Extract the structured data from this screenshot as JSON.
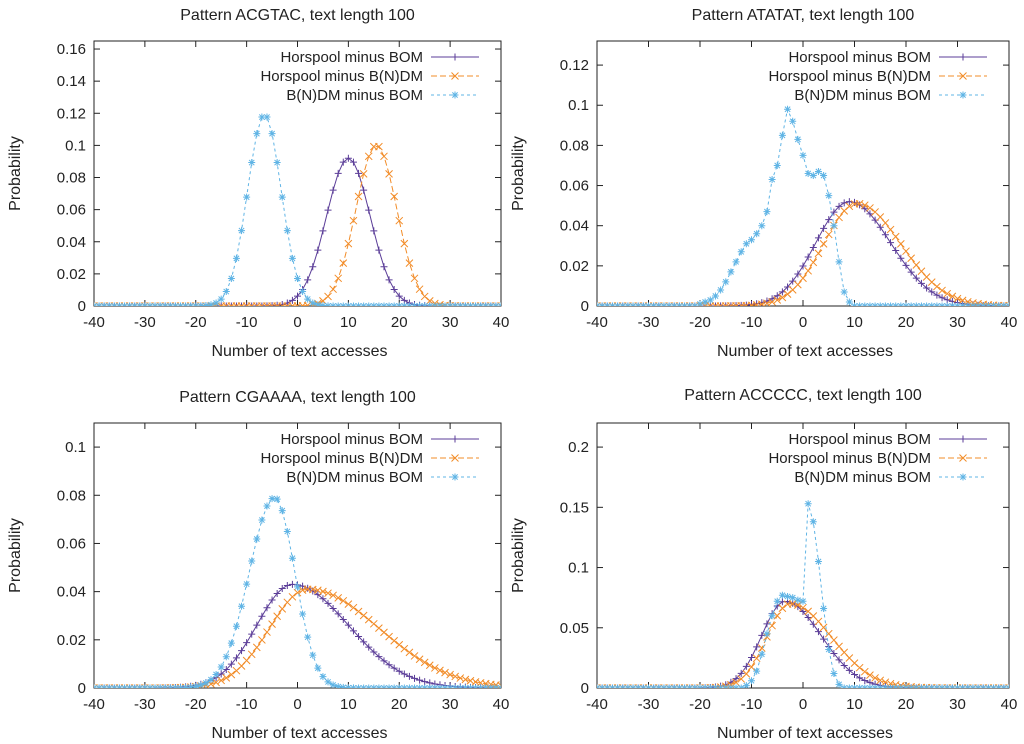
{
  "colors": {
    "horspool_bom": "#5b3d98",
    "horspool_bndm": "#f28c28",
    "bndm_bom": "#5fb4e5",
    "axis": "#222222"
  },
  "chart_data": [
    {
      "type": "line",
      "title": "Pattern ACGTAC, text length 100",
      "xlabel": "Number of text accesses",
      "ylabel": "Probability",
      "xlim": [
        -40,
        40
      ],
      "ylim": [
        0,
        0.165
      ],
      "xticks": [
        -40,
        -30,
        -20,
        -10,
        0,
        10,
        20,
        30,
        40
      ],
      "xtick_labels": [
        "-40",
        "-30",
        "-20",
        "-10",
        "0",
        "10",
        "20",
        "30",
        "40"
      ],
      "yticks": [
        0,
        0.02,
        0.04,
        0.06,
        0.08,
        0.1,
        0.12,
        0.14,
        0.16
      ],
      "ytick_labels": [
        "0",
        "0.02",
        "0.04",
        "0.06",
        "0.08",
        "0.1",
        "0.12",
        "0.14",
        "0.16"
      ],
      "legend": [
        "Horspool minus BOM",
        "Horspool minus B(N)DM",
        "B(N)DM minus BOM"
      ],
      "legend_position": "top-right",
      "series": [
        {
          "name": "Horspool minus BOM",
          "model": {
            "mu": 10,
            "sl": 4.3,
            "sr": 4.3,
            "peak": 0.092
          }
        },
        {
          "name": "Horspool minus B(N)DM",
          "model": {
            "mu": 15.5,
            "sl": 4.0,
            "sr": 4.0,
            "peak": 0.1
          }
        },
        {
          "name": "B(N)DM minus BOM",
          "model": {
            "mu": -6.5,
            "sl": 3.3,
            "sr": 3.3,
            "peak": 0.119
          }
        }
      ]
    },
    {
      "type": "line",
      "title": "Pattern ATATAT, text length 100",
      "xlabel": "Number of text accesses",
      "ylabel": "Probability",
      "xlim": [
        -40,
        40
      ],
      "ylim": [
        0,
        0.132
      ],
      "xticks": [
        -40,
        -30,
        -20,
        -10,
        0,
        10,
        20,
        30,
        40
      ],
      "xtick_labels": [
        "-40",
        "-30",
        "-20",
        "-10",
        "0",
        "10",
        "20",
        "30",
        "40"
      ],
      "yticks": [
        0,
        0.02,
        0.04,
        0.06,
        0.08,
        0.1,
        0.12
      ],
      "ytick_labels": [
        "0",
        "0.02",
        "0.04",
        "0.06",
        "0.08",
        "0.1",
        "0.12"
      ],
      "legend": [
        "Horspool minus BOM",
        "Horspool minus B(N)DM",
        "B(N)DM minus BOM"
      ],
      "legend_position": "top-right",
      "series": [
        {
          "name": "Horspool minus BOM",
          "model": {
            "mu": 9,
            "sl": 6.5,
            "sr": 8.0,
            "peak": 0.052
          }
        },
        {
          "name": "Horspool minus B(N)DM",
          "model": {
            "mu": 10.5,
            "sl": 6.5,
            "sr": 8.5,
            "peak": 0.051
          }
        },
        {
          "name": "B(N)DM minus BOM",
          "values": [
            [
              -22,
              0
            ],
            [
              -21,
              0
            ],
            [
              -20,
              0.001
            ],
            [
              -19,
              0.002
            ],
            [
              -18,
              0.003
            ],
            [
              -17,
              0.005
            ],
            [
              -16,
              0.008
            ],
            [
              -15,
              0.012
            ],
            [
              -14,
              0.017
            ],
            [
              -13,
              0.022
            ],
            [
              -12,
              0.027
            ],
            [
              -11,
              0.031
            ],
            [
              -10,
              0.033
            ],
            [
              -9,
              0.036
            ],
            [
              -8,
              0.04
            ],
            [
              -7,
              0.047
            ],
            [
              -6,
              0.063
            ],
            [
              -5,
              0.07
            ],
            [
              -4,
              0.085
            ],
            [
              -3,
              0.098
            ],
            [
              -2,
              0.092
            ],
            [
              -1,
              0.083
            ],
            [
              0,
              0.075
            ],
            [
              1,
              0.066
            ],
            [
              2,
              0.065
            ],
            [
              3,
              0.067
            ],
            [
              4,
              0.065
            ],
            [
              5,
              0.055
            ],
            [
              6,
              0.04
            ],
            [
              7,
              0.022
            ],
            [
              8,
              0.007
            ],
            [
              9,
              0.002
            ],
            [
              10,
              0
            ],
            [
              11,
              0
            ]
          ]
        }
      ]
    },
    {
      "type": "line",
      "title": "Pattern CGAAAA, text length 100",
      "xlabel": "Number of text accesses",
      "ylabel": "Probability",
      "xlim": [
        -40,
        40
      ],
      "ylim": [
        0,
        0.11
      ],
      "xticks": [
        -40,
        -30,
        -20,
        -10,
        0,
        10,
        20,
        30,
        40
      ],
      "xtick_labels": [
        "-40",
        "-30",
        "-20",
        "-10",
        "0",
        "10",
        "20",
        "30",
        "40"
      ],
      "yticks": [
        0,
        0.02,
        0.04,
        0.06,
        0.08,
        0.1
      ],
      "ytick_labels": [
        "0",
        "0.02",
        "0.04",
        "0.06",
        "0.08",
        "0.1"
      ],
      "legend": [
        "Horspool minus BOM",
        "Horspool minus B(N)DM",
        "B(N)DM minus BOM"
      ],
      "legend_position": "top-right",
      "series": [
        {
          "name": "Horspool minus BOM",
          "model": {
            "mu": -1,
            "sl": 7.0,
            "sr": 11.0,
            "peak": 0.043
          }
        },
        {
          "name": "Horspool minus B(N)DM",
          "model": {
            "mu": 2,
            "sl": 7.5,
            "sr": 14.0,
            "peak": 0.041
          }
        },
        {
          "name": "B(N)DM minus BOM",
          "model": {
            "mu": -4.5,
            "sl": 5.0,
            "sr": 4.0,
            "peak": 0.079
          }
        }
      ]
    },
    {
      "type": "line",
      "title": "Pattern ACCCCC, text length 100",
      "xlabel": "Number of text accesses",
      "ylabel": "Probability",
      "xlim": [
        -40,
        40
      ],
      "ylim": [
        0,
        0.22
      ],
      "xticks": [
        -40,
        -30,
        -20,
        -10,
        0,
        10,
        20,
        30,
        40
      ],
      "xtick_labels": [
        "-40",
        "-30",
        "-20",
        "-10",
        "0",
        "10",
        "20",
        "30",
        "40"
      ],
      "yticks": [
        0,
        0.05,
        0.1,
        0.15,
        0.2
      ],
      "ytick_labels": [
        "0",
        "0.05",
        "0.1",
        "0.15",
        "0.2"
      ],
      "legend": [
        "Horspool minus BOM",
        "Horspool minus B(N)DM",
        "B(N)DM minus BOM"
      ],
      "legend_position": "top-right",
      "series": [
        {
          "name": "Horspool minus BOM",
          "model": {
            "mu": -3.5,
            "sl": 4.5,
            "sr": 7.0,
            "peak": 0.072
          }
        },
        {
          "name": "Horspool minus B(N)DM",
          "model": {
            "mu": -2.5,
            "sl": 4.5,
            "sr": 8.0,
            "peak": 0.07
          }
        },
        {
          "name": "B(N)DM minus BOM",
          "values": [
            [
              -12,
              0
            ],
            [
              -11,
              0.002
            ],
            [
              -10,
              0.006
            ],
            [
              -9,
              0.014
            ],
            [
              -8,
              0.028
            ],
            [
              -7,
              0.045
            ],
            [
              -6,
              0.06
            ],
            [
              -5,
              0.072
            ],
            [
              -4,
              0.077
            ],
            [
              -3,
              0.076
            ],
            [
              -2,
              0.075
            ],
            [
              -1,
              0.073
            ],
            [
              0,
              0.072
            ],
            [
              1,
              0.153
            ],
            [
              2,
              0.138
            ],
            [
              3,
              0.105
            ],
            [
              4,
              0.066
            ],
            [
              5,
              0.032
            ],
            [
              6,
              0.012
            ],
            [
              7,
              0.003
            ],
            [
              8,
              0
            ],
            [
              9,
              0
            ]
          ]
        }
      ]
    }
  ]
}
